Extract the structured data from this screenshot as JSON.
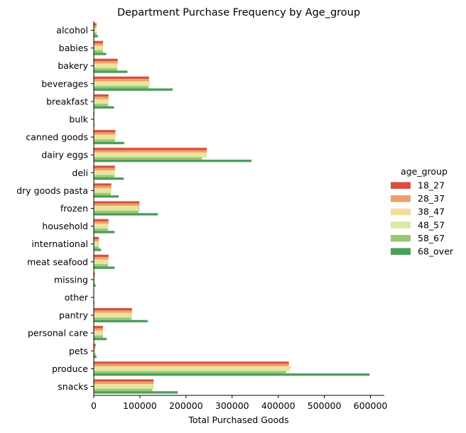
{
  "chart_data": {
    "type": "bar",
    "orientation": "horizontal",
    "title": "Department Purchase Frequency by Age_group",
    "xlabel": "Total Purchased Goods",
    "ylabel": "",
    "xlim": [
      0,
      630000
    ],
    "xticks": [
      0,
      100000,
      200000,
      300000,
      400000,
      500000,
      600000
    ],
    "grid": false,
    "legend_title": "age_group",
    "legend_position": "right",
    "categories": [
      "alcohol",
      "babies",
      "bakery",
      "beverages",
      "breakfast",
      "bulk",
      "canned goods",
      "dairy eggs",
      "deli",
      "dry goods pasta",
      "frozen",
      "household",
      "international",
      "meat seafood",
      "missing",
      "other",
      "pantry",
      "personal care",
      "pets",
      "produce",
      "snacks"
    ],
    "series": [
      {
        "name": "18_27",
        "color": "#d7513f",
        "values": [
          6000,
          20000,
          52000,
          120000,
          32000,
          1500,
          47000,
          245000,
          46000,
          38000,
          99000,
          32000,
          11000,
          32000,
          2500,
          1000,
          83000,
          20000,
          4000,
          423000,
          130000
        ]
      },
      {
        "name": "28_37",
        "color": "#eaa16b",
        "values": [
          6000,
          20000,
          52000,
          120000,
          32000,
          1500,
          47000,
          245000,
          46000,
          38000,
          99000,
          32000,
          11000,
          32000,
          2500,
          1000,
          83000,
          20000,
          4000,
          423000,
          130000
        ]
      },
      {
        "name": "38_47",
        "color": "#f3de9a",
        "values": [
          6000,
          20000,
          52000,
          122000,
          32000,
          1500,
          47000,
          245000,
          46000,
          38000,
          100000,
          32000,
          11000,
          32000,
          2500,
          1000,
          83000,
          20000,
          4000,
          428000,
          130000
        ]
      },
      {
        "name": "48_57",
        "color": "#dbe8a2",
        "values": [
          6000,
          20000,
          52000,
          122000,
          32000,
          1500,
          47000,
          245000,
          46000,
          38000,
          100000,
          32000,
          11000,
          32000,
          2500,
          1000,
          83000,
          20000,
          4000,
          425000,
          130000
        ]
      },
      {
        "name": "58_67",
        "color": "#9dc674",
        "values": [
          6000,
          20000,
          51000,
          119000,
          31000,
          1500,
          46000,
          235000,
          45000,
          37000,
          97000,
          31000,
          11000,
          31000,
          2500,
          1000,
          82000,
          20000,
          4000,
          417000,
          127000
        ]
      },
      {
        "name": "68_over",
        "color": "#4c9e5b",
        "values": [
          9000,
          27000,
          73000,
          171000,
          44000,
          2000,
          66000,
          342000,
          65000,
          54000,
          139000,
          45000,
          16000,
          45000,
          4000,
          1500,
          117000,
          28000,
          6000,
          598000,
          182000
        ]
      }
    ]
  }
}
